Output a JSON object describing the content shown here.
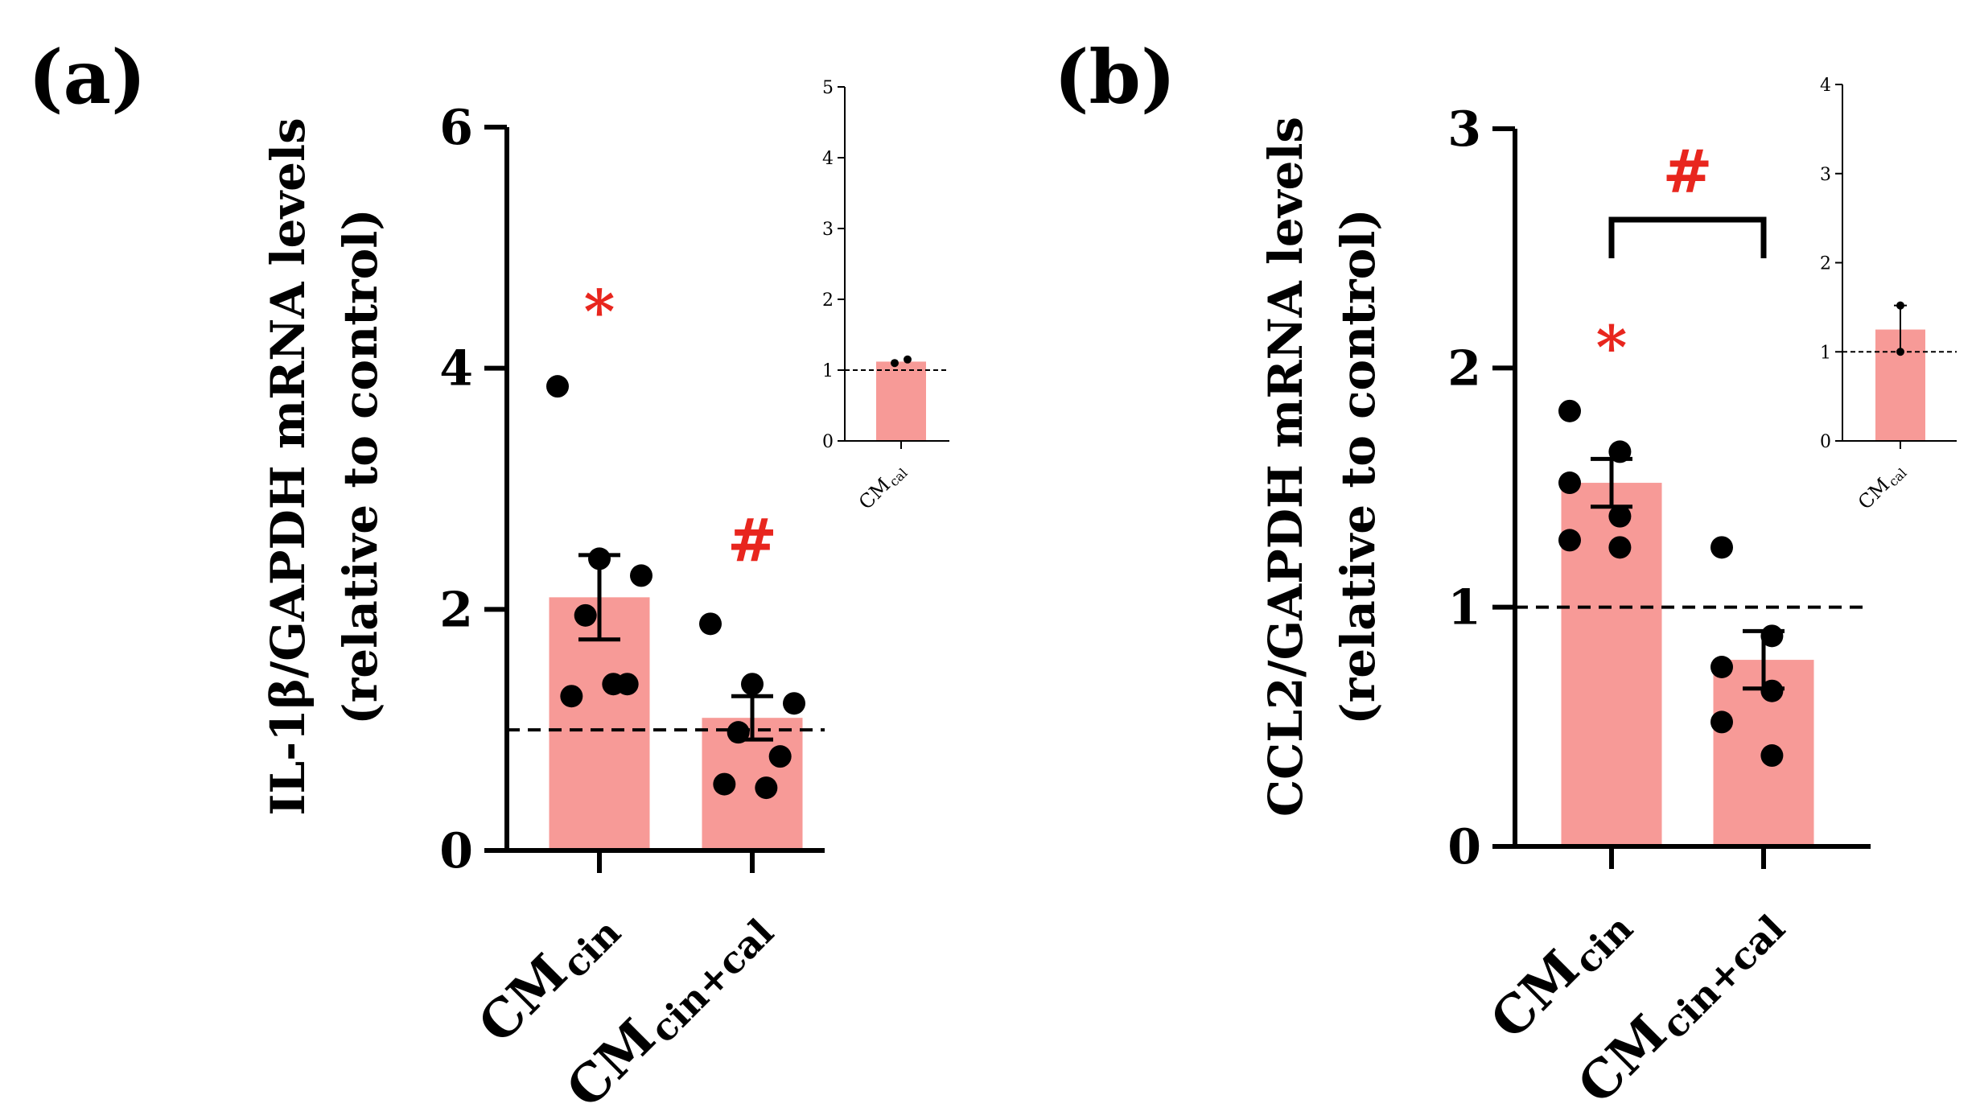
{
  "colors": {
    "bar": "#f79a97",
    "marker": "#e8261e",
    "axis": "#000000",
    "point": "#000000"
  },
  "chart_data": [
    {
      "id": "a",
      "type": "bar",
      "panel_label": "(a)",
      "ylabel_line1": "IL-1β/GAPDH mRNA levels",
      "ylabel_line2": "(relative to control)",
      "ylim": [
        0,
        6
      ],
      "yticks": [
        "0",
        "2",
        "4",
        "6"
      ],
      "reference_line": 1,
      "categories": [
        {
          "main": "CM",
          "sub": "cin"
        },
        {
          "main": "CM",
          "sub": "cin+cal"
        }
      ],
      "values": [
        2.1,
        1.1
      ],
      "sem": [
        0.35,
        0.18
      ],
      "points": [
        [
          3.85,
          2.42,
          2.28,
          1.95,
          1.38,
          1.28,
          1.38
        ],
        [
          1.88,
          1.38,
          1.22,
          0.98,
          0.78,
          0.55,
          0.52
        ]
      ],
      "markers": [
        "*",
        "#"
      ],
      "marker_y": [
        4.5,
        2.6
      ],
      "inset": {
        "ylim": [
          0,
          5
        ],
        "yticks": [
          "0",
          "1",
          "2",
          "3",
          "4",
          "5"
        ],
        "reference_line": 1,
        "category": {
          "main": "CM",
          "sub": "cal"
        },
        "value": 1.12,
        "points": [
          1.1,
          1.15
        ]
      }
    },
    {
      "id": "b",
      "type": "bar",
      "panel_label": "(b)",
      "ylabel_line1": "CCL2/GAPDH mRNA levels",
      "ylabel_line2": "(relative to control)",
      "ylim": [
        0,
        3
      ],
      "yticks": [
        "0",
        "1",
        "2",
        "3"
      ],
      "reference_line": 1,
      "categories": [
        {
          "main": "CM",
          "sub": "cin"
        },
        {
          "main": "CM",
          "sub": "cin+cal"
        }
      ],
      "values": [
        1.52,
        0.78
      ],
      "sem": [
        0.1,
        0.12
      ],
      "points": [
        [
          1.82,
          1.65,
          1.52,
          1.38,
          1.28,
          1.25
        ],
        [
          1.25,
          0.88,
          0.75,
          0.65,
          0.52,
          0.38
        ]
      ],
      "markers": [
        "*",
        ""
      ],
      "marker_y": [
        2.1,
        0
      ],
      "bracket": {
        "label": "#",
        "y": 2.62
      },
      "inset": {
        "ylim": [
          0,
          4
        ],
        "yticks": [
          "0",
          "1",
          "2",
          "3",
          "4"
        ],
        "reference_line": 1,
        "category": {
          "main": "CM",
          "sub": "cal"
        },
        "value": 1.25,
        "points": [
          1.52,
          1.0
        ]
      }
    }
  ]
}
